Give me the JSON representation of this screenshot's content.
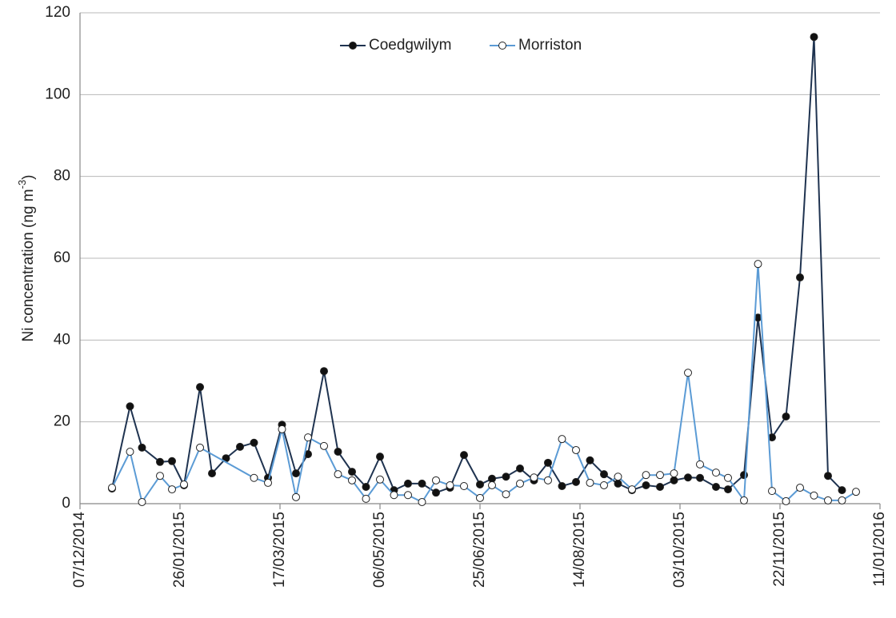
{
  "chart_data": {
    "type": "line",
    "y_label": [
      "Ni concentration (ng m",
      "-3",
      ")"
    ],
    "xlim": [
      "07/12/2014",
      "11/01/2016"
    ],
    "xticks": [
      "07/12/2014",
      "26/01/2015",
      "17/03/2015",
      "06/05/2015",
      "25/06/2015",
      "14/08/2015",
      "03/10/2015",
      "22/11/2015",
      "11/01/2016"
    ],
    "ylim": [
      0,
      120
    ],
    "yticks": [
      0,
      20,
      40,
      60,
      80,
      100,
      120
    ],
    "grid": true,
    "legend": "top",
    "series": [
      {
        "name": "Coedgwilym",
        "color": "#1f3350",
        "marker_fill": "#111111",
        "x": [
          "23/12/2014",
          "01/01/2015",
          "07/01/2015",
          "16/01/2015",
          "22/01/2015",
          "28/01/2015",
          "05/02/2015",
          "11/02/2015",
          "18/02/2015",
          "25/02/2015",
          "04/03/2015",
          "11/03/2015",
          "18/03/2015",
          "25/03/2015",
          "31/03/2015",
          "08/04/2015",
          "15/04/2015",
          "22/04/2015",
          "29/04/2015",
          "06/05/2015",
          "13/05/2015",
          "20/05/2015",
          "27/05/2015",
          "03/06/2015",
          "10/06/2015",
          "17/06/2015",
          "25/06/2015",
          "01/07/2015",
          "08/07/2015",
          "15/07/2015",
          "22/07/2015",
          "29/07/2015",
          "05/08/2015",
          "12/08/2015",
          "19/08/2015",
          "26/08/2015",
          "02/09/2015",
          "09/09/2015",
          "16/09/2015",
          "23/09/2015",
          "30/09/2015",
          "07/10/2015",
          "13/10/2015",
          "21/10/2015",
          "27/10/2015",
          "04/11/2015",
          "11/11/2015",
          "18/11/2015",
          "25/11/2015",
          "02/12/2015",
          "09/12/2015",
          "16/12/2015",
          "23/12/2015"
        ],
        "values": [
          3.7,
          23.8,
          13.7,
          10.2,
          10.4,
          4.5,
          28.5,
          7.4,
          11.1,
          13.9,
          14.9,
          6.3,
          19.3,
          7.4,
          12.1,
          32.4,
          12.7,
          7.8,
          4.1,
          11.5,
          3.3,
          4.9,
          4.9,
          2.7,
          3.9,
          11.9,
          4.7,
          6.1,
          6.6,
          8.6,
          5.7,
          10.0,
          4.3,
          5.3,
          10.6,
          7.2,
          4.9,
          3.3,
          4.5,
          4.1,
          5.7,
          6.4,
          6.3,
          4.1,
          3.5,
          7.0,
          45.5,
          16.2,
          21.3,
          55.3,
          114.1,
          6.8,
          3.3
        ]
      },
      {
        "name": "Morriston",
        "color": "#5b9bd5",
        "marker_fill": "#ffffff",
        "x": [
          "23/12/2014",
          "01/01/2015",
          "07/01/2015",
          "16/01/2015",
          "22/01/2015",
          "28/01/2015",
          "05/02/2015",
          "04/03/2015",
          "11/03/2015",
          "18/03/2015",
          "25/03/2015",
          "31/03/2015",
          "08/04/2015",
          "15/04/2015",
          "22/04/2015",
          "29/04/2015",
          "06/05/2015",
          "13/05/2015",
          "20/05/2015",
          "27/05/2015",
          "03/06/2015",
          "10/06/2015",
          "17/06/2015",
          "25/06/2015",
          "01/07/2015",
          "08/07/2015",
          "15/07/2015",
          "22/07/2015",
          "29/07/2015",
          "05/08/2015",
          "12/08/2015",
          "19/08/2015",
          "26/08/2015",
          "02/09/2015",
          "09/09/2015",
          "16/09/2015",
          "23/09/2015",
          "30/09/2015",
          "07/10/2015",
          "13/10/2015",
          "21/10/2015",
          "27/10/2015",
          "04/11/2015",
          "11/11/2015",
          "18/11/2015",
          "25/11/2015",
          "02/12/2015",
          "09/12/2015",
          "16/12/2015",
          "23/12/2015",
          "30/12/2015"
        ],
        "values": [
          3.9,
          12.7,
          0.4,
          6.8,
          3.5,
          4.7,
          13.7,
          6.3,
          5.1,
          18.2,
          1.6,
          16.2,
          14.1,
          7.2,
          5.7,
          1.2,
          5.9,
          2.1,
          2.1,
          0.4,
          5.7,
          4.5,
          4.3,
          1.4,
          4.5,
          2.3,
          4.9,
          6.4,
          5.7,
          15.8,
          13.1,
          5.1,
          4.5,
          6.6,
          3.5,
          7.0,
          7.0,
          7.4,
          32.0,
          9.6,
          7.6,
          6.3,
          0.8,
          58.6,
          3.1,
          0.6,
          3.9,
          2.0,
          0.8,
          0.8,
          2.9
        ]
      }
    ]
  }
}
